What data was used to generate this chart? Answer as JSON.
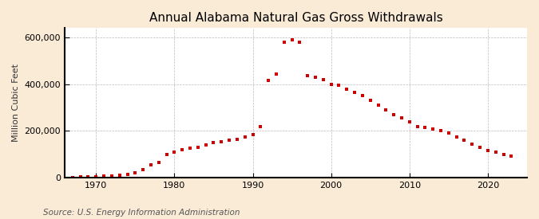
{
  "title": "Annual Alabama Natural Gas Gross Withdrawals",
  "ylabel": "Million Cubic Feet",
  "source": "Source: U.S. Energy Information Administration",
  "figure_bg": "#faebd7",
  "plot_bg": "#ffffff",
  "marker_color": "#cc0000",
  "grid_color": "#aaaaaa",
  "spine_color": "#000000",
  "title_fontsize": 11,
  "ylabel_fontsize": 8,
  "source_fontsize": 7.5,
  "tick_fontsize": 8,
  "xlim": [
    1966,
    2025
  ],
  "ylim": [
    0,
    640000
  ],
  "yticks": [
    0,
    200000,
    400000,
    600000
  ],
  "xticks": [
    1970,
    1980,
    1990,
    2000,
    2010,
    2020
  ],
  "years": [
    1967,
    1968,
    1969,
    1970,
    1971,
    1972,
    1973,
    1974,
    1975,
    1976,
    1977,
    1978,
    1979,
    1980,
    1981,
    1982,
    1983,
    1984,
    1985,
    1986,
    1987,
    1988,
    1989,
    1990,
    1991,
    1992,
    1993,
    1994,
    1995,
    1996,
    1997,
    1998,
    1999,
    2000,
    2001,
    2002,
    2003,
    2004,
    2005,
    2006,
    2007,
    2008,
    2009,
    2010,
    2011,
    2012,
    2013,
    2014,
    2015,
    2016,
    2017,
    2018,
    2019,
    2020,
    2021,
    2022,
    2023
  ],
  "values": [
    2000,
    3000,
    4000,
    5000,
    7000,
    8000,
    10000,
    15000,
    20000,
    35000,
    55000,
    65000,
    100000,
    110000,
    120000,
    125000,
    130000,
    140000,
    150000,
    155000,
    160000,
    165000,
    175000,
    185000,
    220000,
    415000,
    445000,
    580000,
    590000,
    580000,
    435000,
    430000,
    420000,
    400000,
    395000,
    380000,
    365000,
    350000,
    330000,
    310000,
    290000,
    270000,
    255000,
    240000,
    220000,
    215000,
    210000,
    200000,
    190000,
    175000,
    160000,
    145000,
    130000,
    115000,
    108000,
    100000,
    92000
  ]
}
